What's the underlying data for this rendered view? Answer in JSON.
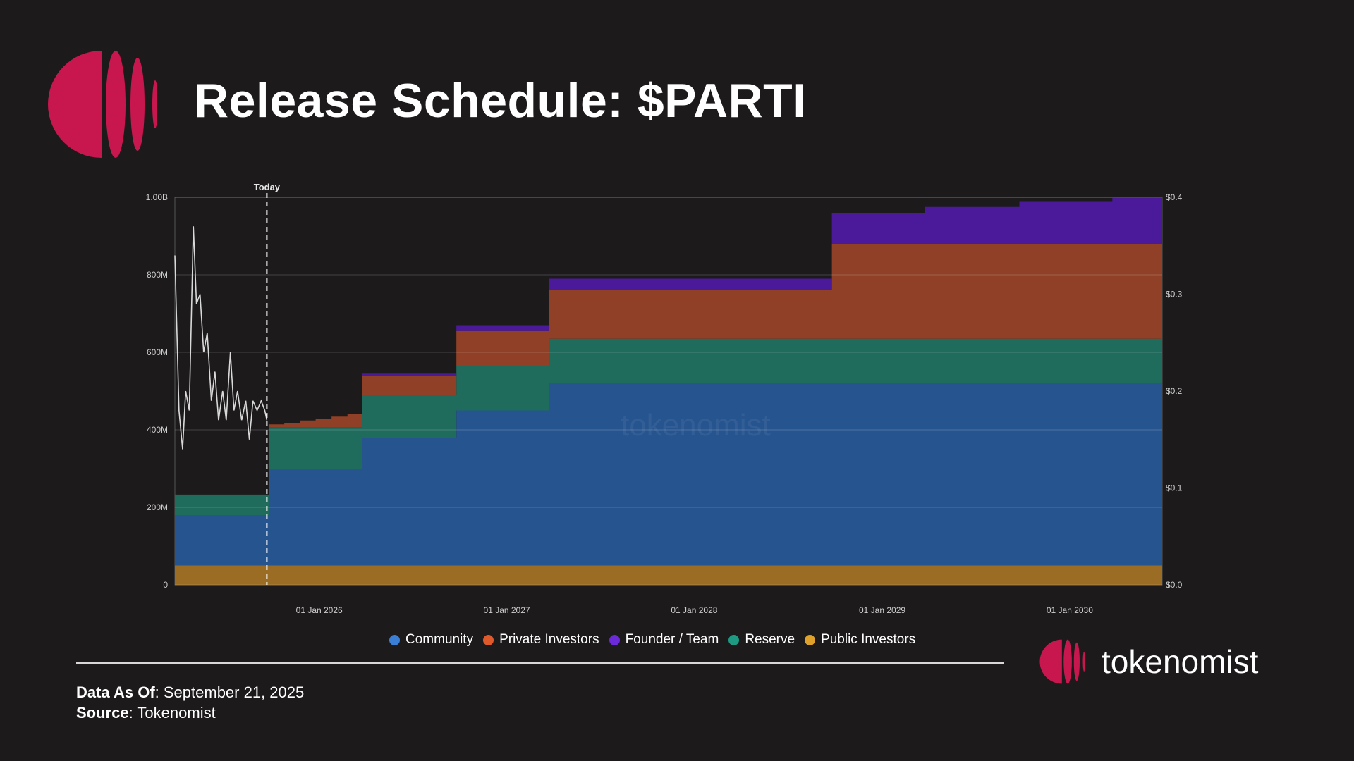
{
  "title": "Release Schedule: $PARTI",
  "footer": {
    "data_as_of_label": "Data As Of",
    "data_as_of_value": ": September 21, 2025",
    "source_label": "Source",
    "source_value": ": Tokenomist"
  },
  "brand": {
    "name": "tokenomist",
    "watermark": "tokenomist"
  },
  "colors": {
    "background": "#1c1a1b",
    "community": "#26548f",
    "private_investors": "#8f4026",
    "founder_team": "#4b1a9a",
    "reserve": "#1f6b5c",
    "public_investors": "#9a6c24",
    "price_line": "#d9d9d9",
    "brand": "#c8174f"
  },
  "chart_data": {
    "type": "area",
    "stacked": true,
    "step": true,
    "today_label": "Today",
    "today_x": "2025-09-21",
    "x_range": [
      "2025-03-26",
      "2030-06-30"
    ],
    "x_ticks": [
      "01 Jan 2026",
      "01 Jan 2027",
      "01 Jan 2028",
      "01 Jan 2029",
      "01 Jan 2030"
    ],
    "x_tick_dates": [
      "2026-01-01",
      "2027-01-01",
      "2028-01-01",
      "2029-01-01",
      "2030-01-01"
    ],
    "y_left": {
      "range": [
        0,
        1000000000
      ],
      "ticks": [
        "0",
        "200M",
        "400M",
        "600M",
        "800M",
        "1.00B"
      ]
    },
    "y_right": {
      "range": [
        0,
        0.4
      ],
      "ticks": [
        "$0.0",
        "$0.1",
        "$0.2",
        "$0.3",
        "$0.4"
      ]
    },
    "grid": true,
    "legend_position": "bottom",
    "legend": [
      "Community",
      "Private Investors",
      "Founder / Team",
      "Reserve",
      "Public Investors"
    ],
    "stack_order": [
      "Public Investors",
      "Community",
      "Reserve",
      "Private Investors",
      "Founder / Team"
    ],
    "series": [
      {
        "name": "Public Investors",
        "color_key": "public_investors",
        "points": [
          [
            "2025-03-26",
            50000000
          ],
          [
            "2030-06-30",
            50000000
          ]
        ]
      },
      {
        "name": "Community",
        "color_key": "community",
        "points": [
          [
            "2025-03-26",
            130000000
          ],
          [
            "2025-09-25",
            250000000
          ],
          [
            "2026-03-25",
            330000000
          ],
          [
            "2026-09-25",
            400000000
          ],
          [
            "2027-03-25",
            470000000
          ],
          [
            "2030-06-30",
            470000000
          ]
        ]
      },
      {
        "name": "Reserve",
        "color_key": "reserve",
        "points": [
          [
            "2025-03-26",
            53000000
          ],
          [
            "2025-09-25",
            107000000
          ],
          [
            "2026-03-25",
            110000000
          ],
          [
            "2026-09-25",
            115000000
          ],
          [
            "2027-03-25",
            115000000
          ],
          [
            "2030-06-30",
            115000000
          ]
        ]
      },
      {
        "name": "Private Investors",
        "color_key": "private_investors",
        "points": [
          [
            "2025-03-26",
            0
          ],
          [
            "2025-09-25",
            7000000
          ],
          [
            "2025-10-25",
            10000000
          ],
          [
            "2025-11-25",
            17000000
          ],
          [
            "2025-12-25",
            21000000
          ],
          [
            "2026-01-25",
            27000000
          ],
          [
            "2026-02-25",
            33000000
          ],
          [
            "2026-03-25",
            50000000
          ],
          [
            "2026-09-25",
            90000000
          ],
          [
            "2027-03-25",
            125000000
          ],
          [
            "2028-09-25",
            245000000
          ],
          [
            "2030-06-30",
            245000000
          ]
        ]
      },
      {
        "name": "Founder / Team",
        "color_key": "founder_team",
        "points": [
          [
            "2025-03-26",
            0
          ],
          [
            "2026-03-25",
            5000000
          ],
          [
            "2026-09-25",
            15000000
          ],
          [
            "2027-03-25",
            30000000
          ],
          [
            "2028-09-25",
            80000000
          ],
          [
            "2029-03-25",
            95000000
          ],
          [
            "2029-09-25",
            110000000
          ],
          [
            "2030-03-25",
            120000000
          ],
          [
            "2030-06-30",
            123000000
          ]
        ]
      }
    ],
    "price_series": {
      "name": "Price",
      "axis": "right",
      "points": [
        [
          "2025-03-26",
          0.34
        ],
        [
          "2025-04-03",
          0.18
        ],
        [
          "2025-04-10",
          0.14
        ],
        [
          "2025-04-16",
          0.2
        ],
        [
          "2025-04-23",
          0.18
        ],
        [
          "2025-05-01",
          0.37
        ],
        [
          "2025-05-07",
          0.29
        ],
        [
          "2025-05-14",
          0.3
        ],
        [
          "2025-05-21",
          0.24
        ],
        [
          "2025-05-28",
          0.26
        ],
        [
          "2025-06-05",
          0.19
        ],
        [
          "2025-06-12",
          0.22
        ],
        [
          "2025-06-19",
          0.17
        ],
        [
          "2025-06-27",
          0.2
        ],
        [
          "2025-07-04",
          0.17
        ],
        [
          "2025-07-12",
          0.24
        ],
        [
          "2025-07-19",
          0.18
        ],
        [
          "2025-07-26",
          0.2
        ],
        [
          "2025-08-03",
          0.17
        ],
        [
          "2025-08-11",
          0.19
        ],
        [
          "2025-08-18",
          0.15
        ],
        [
          "2025-08-25",
          0.19
        ],
        [
          "2025-09-02",
          0.18
        ],
        [
          "2025-09-10",
          0.19
        ],
        [
          "2025-09-17",
          0.18
        ],
        [
          "2025-09-21",
          0.17
        ]
      ]
    }
  }
}
